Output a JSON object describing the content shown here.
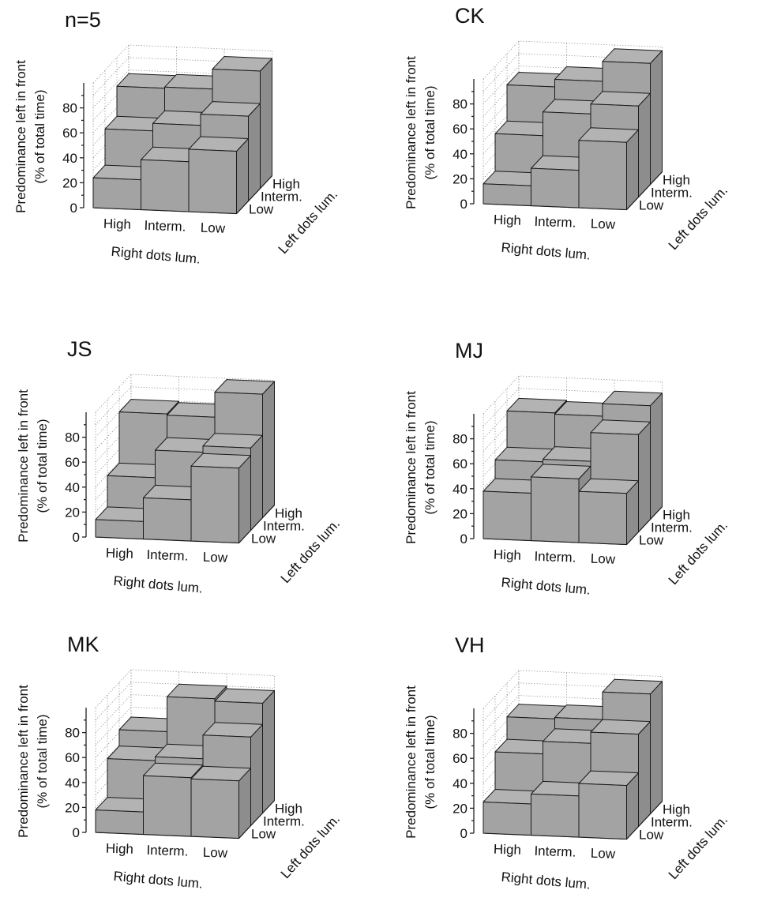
{
  "chart_data": [
    {
      "type": "bar3d",
      "title": "n=5",
      "zlabel": [
        "Predominance left in front",
        "(% of total time)"
      ],
      "xlabel": "Right dots lum.",
      "ylabel": "Left dots lum.",
      "x_categories": [
        "High",
        "Interm.",
        "Low"
      ],
      "y_categories": [
        "Low",
        "Interm.",
        "High"
      ],
      "z_ticks": [
        "0",
        "20",
        "40",
        "60",
        "80"
      ],
      "zlim": [
        0,
        100
      ],
      "values": [
        [
          24,
          40,
          50
        ],
        [
          53,
          59,
          68
        ],
        [
          77,
          78,
          94
        ]
      ]
    },
    {
      "type": "bar3d",
      "title": "CK",
      "zlabel": [
        "Predominance left in front",
        "(% of total time)"
      ],
      "xlabel": "Right dots lum.",
      "ylabel": "Left dots lum.",
      "x_categories": [
        "High",
        "Interm.",
        "Low"
      ],
      "y_categories": [
        "Low",
        "Interm.",
        "High"
      ],
      "z_ticks": [
        "0",
        "20",
        "40",
        "60",
        "80"
      ],
      "zlim": [
        0,
        100
      ],
      "values": [
        [
          16,
          30,
          54
        ],
        [
          46,
          65,
          73
        ],
        [
          75,
          81,
          97
        ]
      ]
    },
    {
      "type": "bar3d",
      "title": "JS",
      "zlabel": [
        "Predominance left in front",
        "(% of total time)"
      ],
      "xlabel": "Right dots lum.",
      "ylabel": "Left dots lum.",
      "x_categories": [
        "High",
        "Interm.",
        "Low"
      ],
      "y_categories": [
        "Low",
        "Interm.",
        "High"
      ],
      "z_ticks": [
        "0",
        "20",
        "40",
        "60",
        "80"
      ],
      "zlim": [
        0,
        100
      ],
      "values": [
        [
          14,
          33,
          60
        ],
        [
          39,
          61,
          66
        ],
        [
          80,
          79,
          99
        ]
      ]
    },
    {
      "type": "bar3d",
      "title": "MJ",
      "zlabel": [
        "Predominance left in front",
        "(% of total time)"
      ],
      "xlabel": "Right dots lum.",
      "ylabel": "Left dots lum.",
      "x_categories": [
        "High",
        "Interm.",
        "Low"
      ],
      "y_categories": [
        "Low",
        "Interm.",
        "High"
      ],
      "z_ticks": [
        "0",
        "20",
        "40",
        "60",
        "80"
      ],
      "zlim": [
        0,
        100
      ],
      "values": [
        [
          38,
          51,
          41
        ],
        [
          53,
          55,
          78
        ],
        [
          82,
          81,
          91
        ]
      ]
    },
    {
      "type": "bar3d",
      "title": "MK",
      "zlabel": [
        "Predominance left in front",
        "(% of total time)"
      ],
      "xlabel": "Right dots lum.",
      "ylabel": "Left dots lum.",
      "x_categories": [
        "High",
        "Interm.",
        "Low"
      ],
      "y_categories": [
        "Low",
        "Interm.",
        "High"
      ],
      "z_ticks": [
        "0",
        "20",
        "40",
        "60",
        "80"
      ],
      "zlim": [
        0,
        100
      ],
      "values": [
        [
          18,
          47,
          46
        ],
        [
          49,
          52,
          71
        ],
        [
          62,
          90,
          88
        ]
      ]
    },
    {
      "type": "bar3d",
      "title": "VH",
      "zlabel": [
        "Predominance left in front",
        "(% of total time)"
      ],
      "xlabel": "Right dots lum.",
      "ylabel": "Left dots lum.",
      "x_categories": [
        "High",
        "Interm.",
        "Low"
      ],
      "y_categories": [
        "Low",
        "Interm.",
        "High"
      ],
      "z_ticks": [
        "0",
        "20",
        "40",
        "60",
        "80"
      ],
      "zlim": [
        0,
        100
      ],
      "values": [
        [
          25,
          33,
          43
        ],
        [
          55,
          65,
          74
        ],
        [
          73,
          74,
          96
        ]
      ]
    }
  ],
  "colors": {
    "bar_front": "#a3a3a3",
    "bar_top": "#b3b3b3",
    "bar_side": "#8d8d8d"
  }
}
